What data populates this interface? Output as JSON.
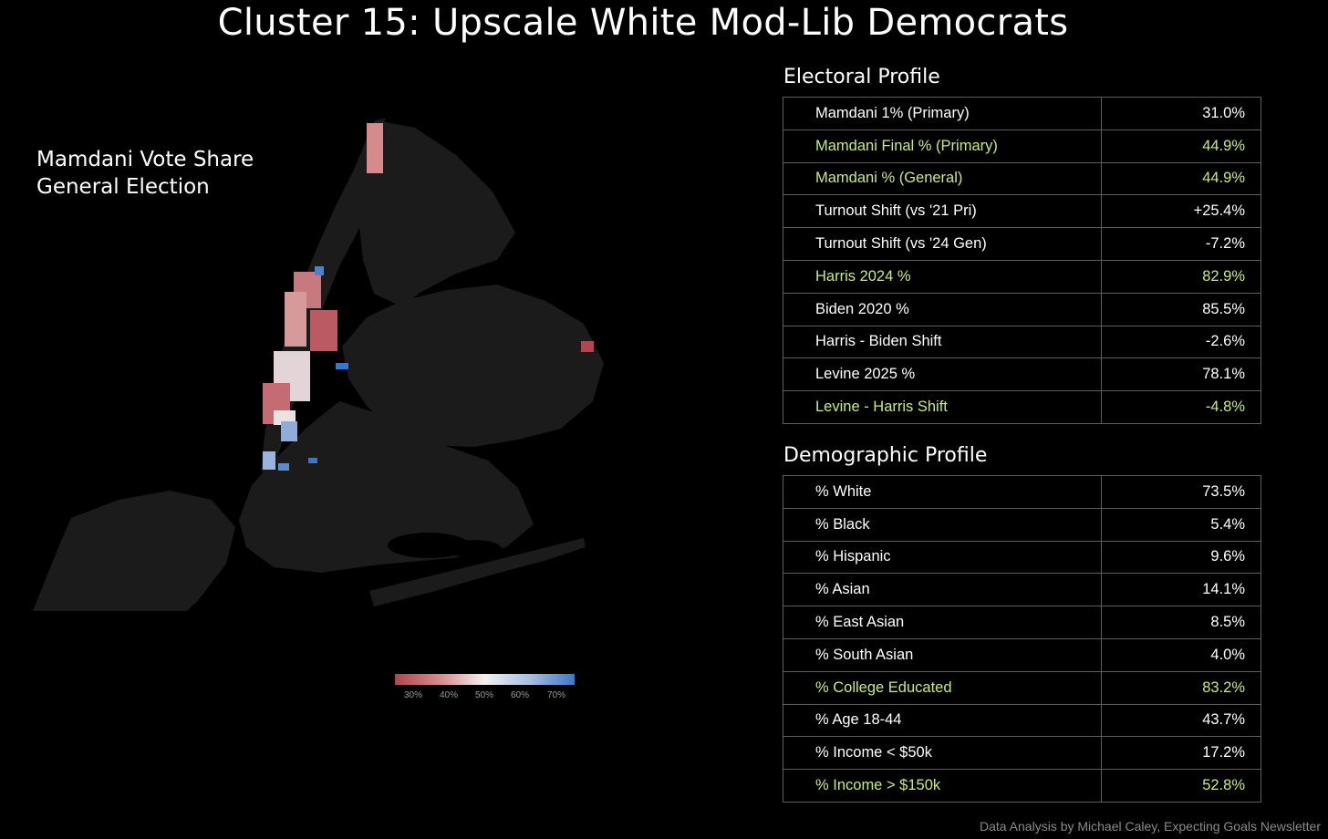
{
  "title": "Cluster 15: Upscale White Mod-Lib Democrats",
  "map": {
    "label_line1": "Mamdani Vote Share",
    "label_line2": "General Election",
    "land_color": "#1b1b1b",
    "water_color": "#000000",
    "legend": {
      "ticks": [
        "30%",
        "40%",
        "50%",
        "60%",
        "70%"
      ],
      "color_low": "#b2454f",
      "color_mid": "#f3f0f0",
      "color_high": "#3a77c8"
    }
  },
  "electoral": {
    "heading": "Electoral Profile",
    "rows": [
      {
        "label": "Mamdani 1% (Primary)",
        "value": "31.0%",
        "highlight": false
      },
      {
        "label": "Mamdani Final % (Primary)",
        "value": "44.9%",
        "highlight": true
      },
      {
        "label": "Mamdani % (General)",
        "value": "44.9%",
        "highlight": true
      },
      {
        "label": "Turnout Shift (vs '21 Pri)",
        "value": "+25.4%",
        "highlight": false
      },
      {
        "label": "Turnout Shift (vs '24 Gen)",
        "value": "-7.2%",
        "highlight": false
      },
      {
        "label": "Harris 2024 %",
        "value": "82.9%",
        "highlight": true
      },
      {
        "label": "Biden 2020 %",
        "value": "85.5%",
        "highlight": false
      },
      {
        "label": "Harris - Biden Shift",
        "value": "-2.6%",
        "highlight": false
      },
      {
        "label": "Levine 2025 %",
        "value": "78.1%",
        "highlight": false
      },
      {
        "label": "Levine - Harris Shift",
        "value": "-4.8%",
        "highlight": true
      }
    ]
  },
  "demographic": {
    "heading": "Demographic Profile",
    "rows": [
      {
        "label": "% White",
        "value": "73.5%",
        "highlight": false
      },
      {
        "label": "% Black",
        "value": "5.4%",
        "highlight": false
      },
      {
        "label": "% Hispanic",
        "value": "9.6%",
        "highlight": false
      },
      {
        "label": "% Asian",
        "value": "14.1%",
        "highlight": false
      },
      {
        "label": "% East Asian",
        "value": "8.5%",
        "highlight": false
      },
      {
        "label": "% South Asian",
        "value": "4.0%",
        "highlight": false
      },
      {
        "label": "% College Educated",
        "value": "83.2%",
        "highlight": true
      },
      {
        "label": "% Age 18-44",
        "value": "43.7%",
        "highlight": false
      },
      {
        "label": "% Income < $50k",
        "value": "17.2%",
        "highlight": false
      },
      {
        "label": "% Income > $150k",
        "value": "52.8%",
        "highlight": true
      }
    ]
  },
  "credit": "Data Analysis by Michael Caley, Expecting Goals Newsletter"
}
